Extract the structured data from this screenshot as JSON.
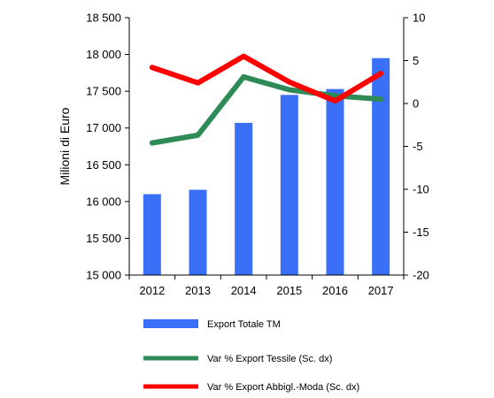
{
  "chart_data": {
    "type": "bar",
    "categories": [
      "2012",
      "2013",
      "2014",
      "2015",
      "2016",
      "2017"
    ],
    "ylabel": "Milioni di Euro",
    "ylim_left": [
      15000,
      18500
    ],
    "ylim_right": [
      -20,
      10
    ],
    "left_ticks": [
      15000,
      15500,
      16000,
      16500,
      17000,
      17500,
      18000,
      18500
    ],
    "left_tick_labels": [
      "15 000",
      "15 500",
      "16 000",
      "16 500",
      "17 000",
      "17 500",
      "18 000",
      "18 500"
    ],
    "right_ticks": [
      -20,
      -15,
      -10,
      -5,
      0,
      5,
      10
    ],
    "right_tick_labels": [
      "-20",
      "-15",
      "-10",
      "-5",
      "0",
      "5",
      "10"
    ],
    "grid": false,
    "legend_position": "bottom",
    "series": [
      {
        "name": "Export Totale TM",
        "kind": "bar",
        "axis": "left",
        "color": "#3a6ff7",
        "values": [
          16100,
          16160,
          17070,
          17450,
          17530,
          17950
        ]
      },
      {
        "name": "Var % Export Tessile (Sc. dx)",
        "kind": "line",
        "axis": "right",
        "color": "#2e8b57",
        "values": [
          -4.6,
          -3.7,
          3.1,
          1.6,
          0.9,
          0.5
        ]
      },
      {
        "name": "Var % Export Abbigl.-Moda (Sc. dx)",
        "kind": "line",
        "axis": "right",
        "color": "#ff0000",
        "values": [
          4.2,
          2.4,
          5.5,
          2.5,
          0.3,
          3.5
        ]
      }
    ]
  }
}
